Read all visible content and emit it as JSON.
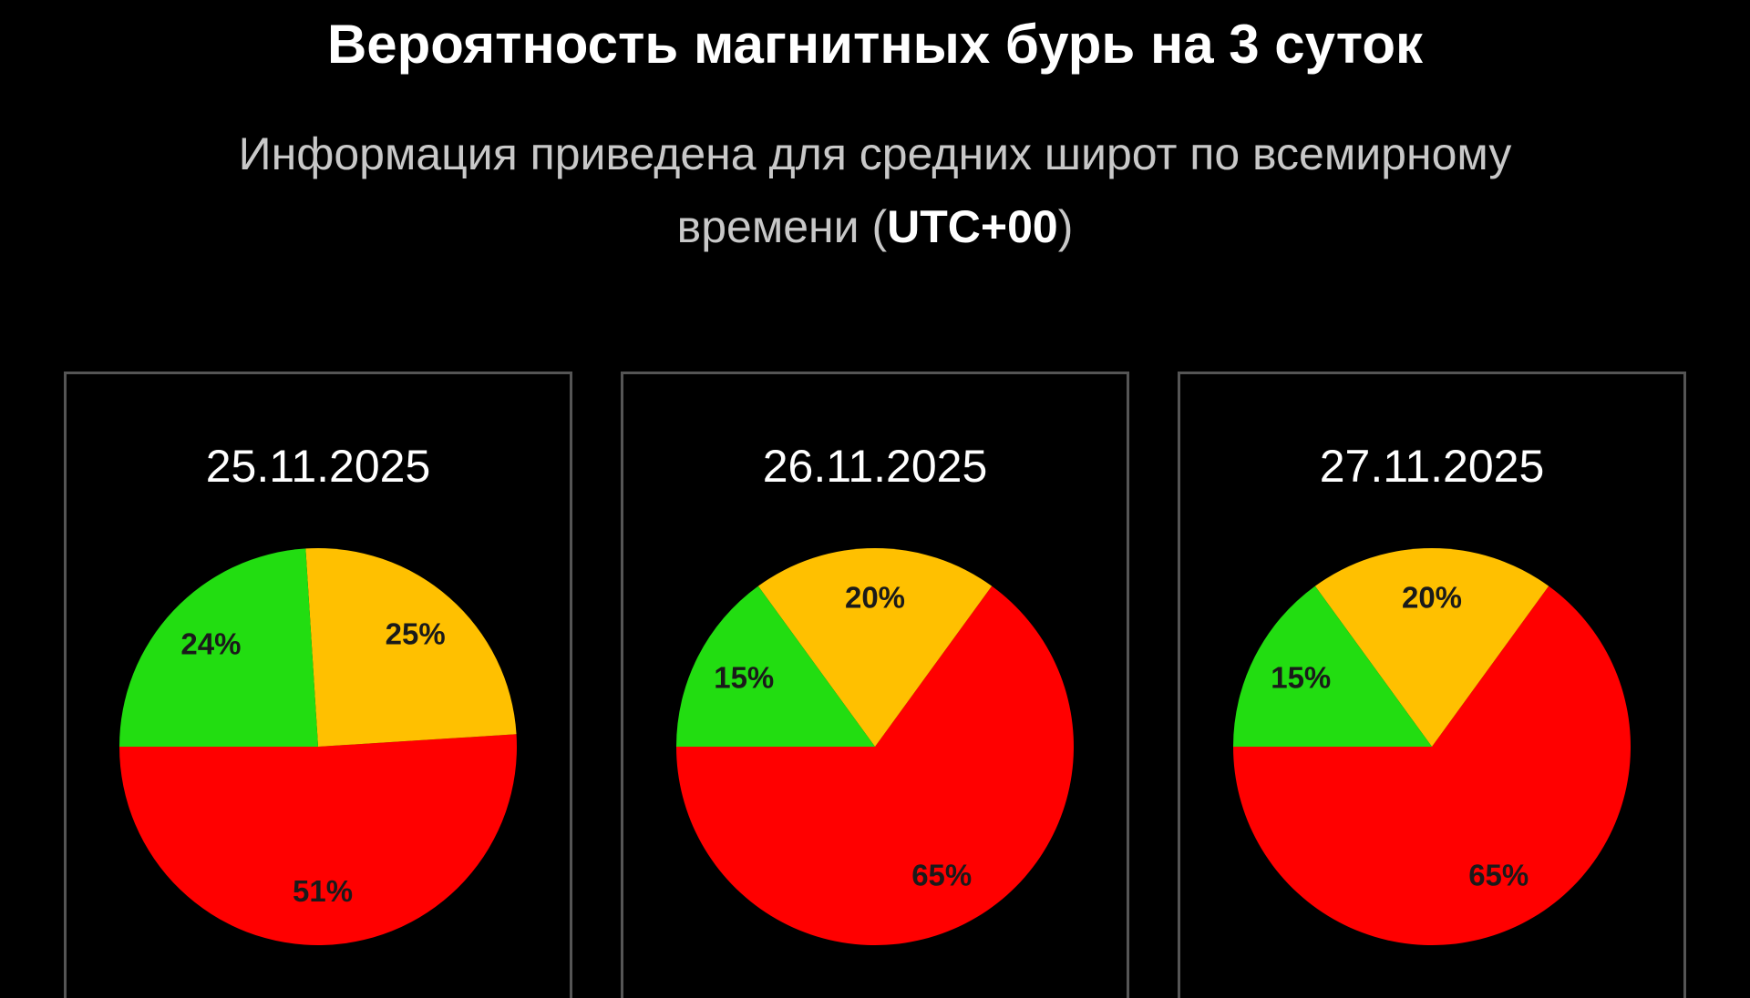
{
  "header": {
    "title": "Вероятность магнитных бурь на 3 суток",
    "subtitle_line1": "Информация приведена для средних широт по всемирному",
    "subtitle_line2_start": "времени (",
    "subtitle_line2_bold": "UTC+00",
    "subtitle_line2_end": ")"
  },
  "chart_data": [
    {
      "type": "pie",
      "title": "25.11.2025",
      "values": [
        51,
        25,
        24
      ],
      "value_labels": [
        "51%",
        "25%",
        "24%"
      ],
      "colors": [
        "#ff0000",
        "#ffc000",
        "#22dd11"
      ],
      "startangle": 180,
      "counterclockwise": true
    },
    {
      "type": "pie",
      "title": "26.11.2025",
      "values": [
        65,
        20,
        15
      ],
      "value_labels": [
        "65%",
        "20%",
        "15%"
      ],
      "colors": [
        "#ff0000",
        "#ffc000",
        "#22dd11"
      ],
      "startangle": 180,
      "counterclockwise": true
    },
    {
      "type": "pie",
      "title": "27.11.2025",
      "values": [
        65,
        20,
        15
      ],
      "value_labels": [
        "65%",
        "20%",
        "15%"
      ],
      "colors": [
        "#ff0000",
        "#ffc000",
        "#22dd11"
      ],
      "startangle": 180,
      "counterclockwise": true
    }
  ]
}
